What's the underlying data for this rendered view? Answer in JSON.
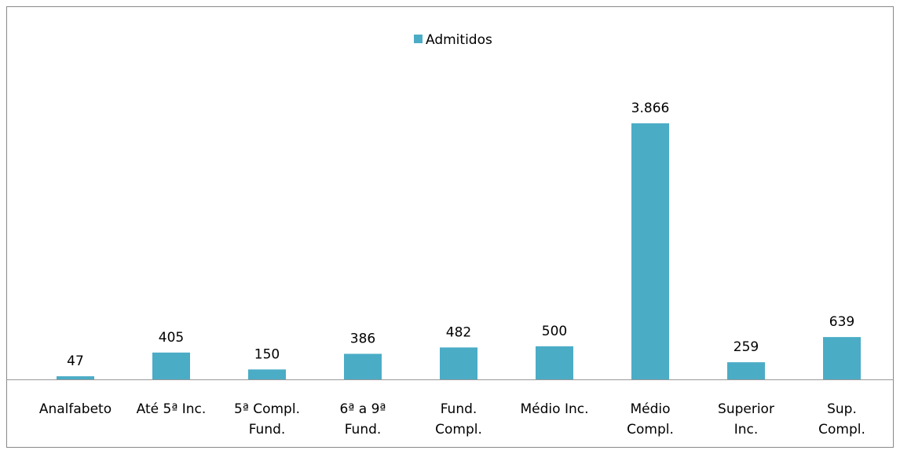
{
  "chart_data": {
    "type": "bar",
    "categories": [
      "Analfabeto",
      "Até 5ª Inc.",
      "5ª Compl.\nFund.",
      "6ª a 9ª\nFund.",
      "Fund.\nCompl.",
      "Médio Inc.",
      "Médio\nCompl.",
      "Superior\nInc.",
      "Sup.\nCompl."
    ],
    "series": [
      {
        "name": "Admitidos",
        "color": "#4bacc6",
        "values": [
          47,
          405,
          150,
          386,
          482,
          500,
          3866,
          259,
          639
        ],
        "value_labels": [
          "47",
          "405",
          "150",
          "386",
          "482",
          "500",
          "3.866",
          "259",
          "639"
        ]
      }
    ],
    "legend": "top"
  }
}
